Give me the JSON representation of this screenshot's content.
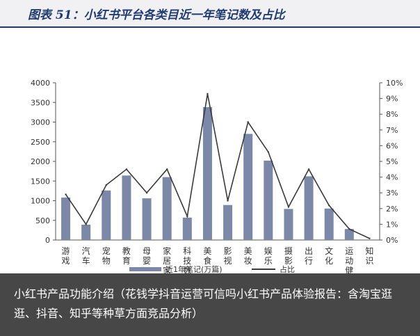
{
  "header": {
    "title": "图表 51：小红书平台各类目近一年笔记数及占比"
  },
  "caption": {
    "text": "小红书产品功能介绍（花钱学抖音运营可信吗小红书产品体验报告：含淘宝逛逛、抖音、知乎等种草方面竞品分析）"
  },
  "chart_data": {
    "type": "bar",
    "title": "",
    "categories": [
      "游戏",
      "汽车",
      "宠物",
      "教育",
      "母婴",
      "家居家装",
      "科技数码",
      "美食",
      "影视",
      "美妆",
      "娱乐",
      "摄影",
      "出行",
      "文化",
      "运动健身",
      "知识"
    ],
    "ylim": [
      0,
      4000
    ],
    "y_ticks": [
      0,
      500,
      1000,
      1500,
      2000,
      2500,
      3000,
      3500,
      4000
    ],
    "y2lim": [
      0,
      10
    ],
    "y2_ticks": [
      "0%",
      "1%",
      "2%",
      "3%",
      "4%",
      "5%",
      "6%",
      "7%",
      "8%",
      "9%",
      "10%"
    ],
    "series": [
      {
        "name": "近1年笔记(万篇)",
        "type": "bar",
        "color": "#7b88a8",
        "axis": "left",
        "values": [
          1080,
          390,
          1260,
          1640,
          1060,
          1600,
          570,
          3380,
          890,
          2700,
          2020,
          790,
          1620,
          800,
          280,
          0
        ]
      },
      {
        "name": "占比",
        "type": "line",
        "color": "#3a3a3a",
        "axis": "right",
        "values": [
          2.9,
          1.0,
          3.5,
          4.5,
          3.0,
          4.5,
          1.5,
          9.3,
          2.5,
          7.5,
          5.6,
          2.1,
          4.5,
          2.2,
          0.7,
          0.1
        ]
      }
    ]
  }
}
